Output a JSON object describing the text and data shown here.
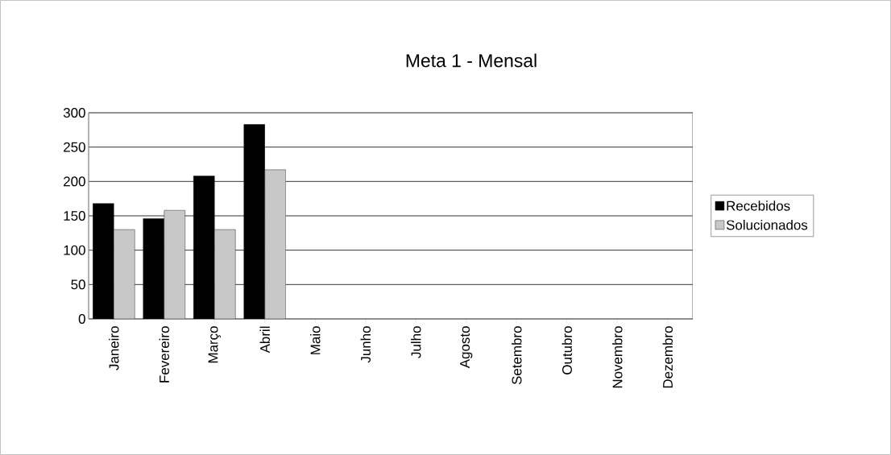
{
  "chart_data": {
    "type": "bar",
    "title": "Meta 1 - Mensal",
    "categories": [
      "Janeiro",
      "Fevereiro",
      "Março",
      "Abril",
      "Maio",
      "Junho",
      "Julho",
      "Agosto",
      "Setembro",
      "Outubro",
      "Novembro",
      "Dezembro"
    ],
    "series": [
      {
        "name": "Recebidos",
        "color": "#000000",
        "values": [
          168,
          146,
          208,
          283,
          null,
          null,
          null,
          null,
          null,
          null,
          null,
          null
        ]
      },
      {
        "name": "Solucionados",
        "color": "#c8c8c8",
        "values": [
          130,
          158,
          130,
          217,
          null,
          null,
          null,
          null,
          null,
          null,
          null,
          null
        ]
      }
    ],
    "ylim": [
      0,
      300
    ],
    "yticks": [
      0,
      50,
      100,
      150,
      200,
      250,
      300
    ],
    "grid": "y",
    "legend": "right"
  }
}
